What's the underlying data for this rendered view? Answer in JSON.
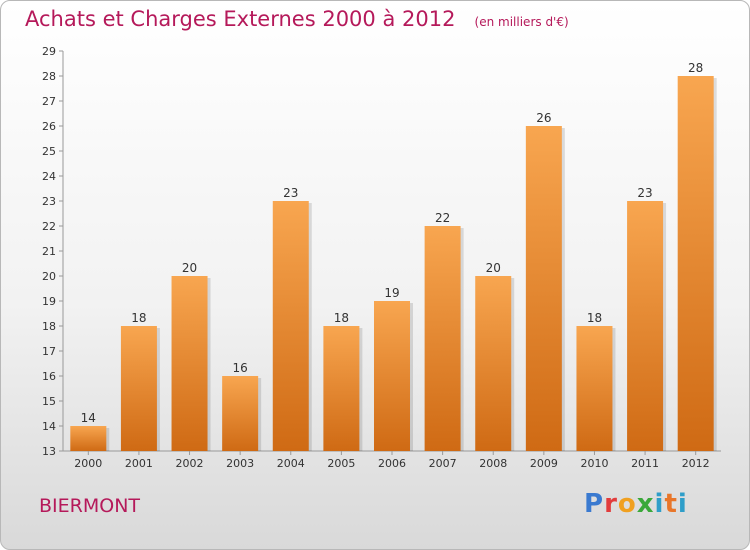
{
  "header": {
    "title": "Achats et Charges Externes 2000 à 2012",
    "unit": "(en milliers d'€)"
  },
  "footer": {
    "place": "BIERMONT",
    "logo": "Proxiti"
  },
  "colors": {
    "title": "#b5195a",
    "bar_top": "#f8a650",
    "bar_bottom": "#cf6a14",
    "axis": "#999999"
  },
  "chart_data": {
    "type": "bar",
    "title": "Achats et Charges Externes 2000 à 2012",
    "xlabel": "",
    "ylabel": "",
    "categories": [
      "2000",
      "2001",
      "2002",
      "2003",
      "2004",
      "2005",
      "2006",
      "2007",
      "2008",
      "2009",
      "2010",
      "2011",
      "2012"
    ],
    "values": [
      14,
      18,
      20,
      16,
      23,
      18,
      19,
      22,
      20,
      26,
      18,
      23,
      28
    ],
    "ylim": [
      13,
      29
    ],
    "yticks": [
      13,
      14,
      15,
      16,
      17,
      18,
      19,
      20,
      21,
      22,
      23,
      24,
      25,
      26,
      27,
      28,
      29
    ],
    "grid": false,
    "legend": "none"
  }
}
